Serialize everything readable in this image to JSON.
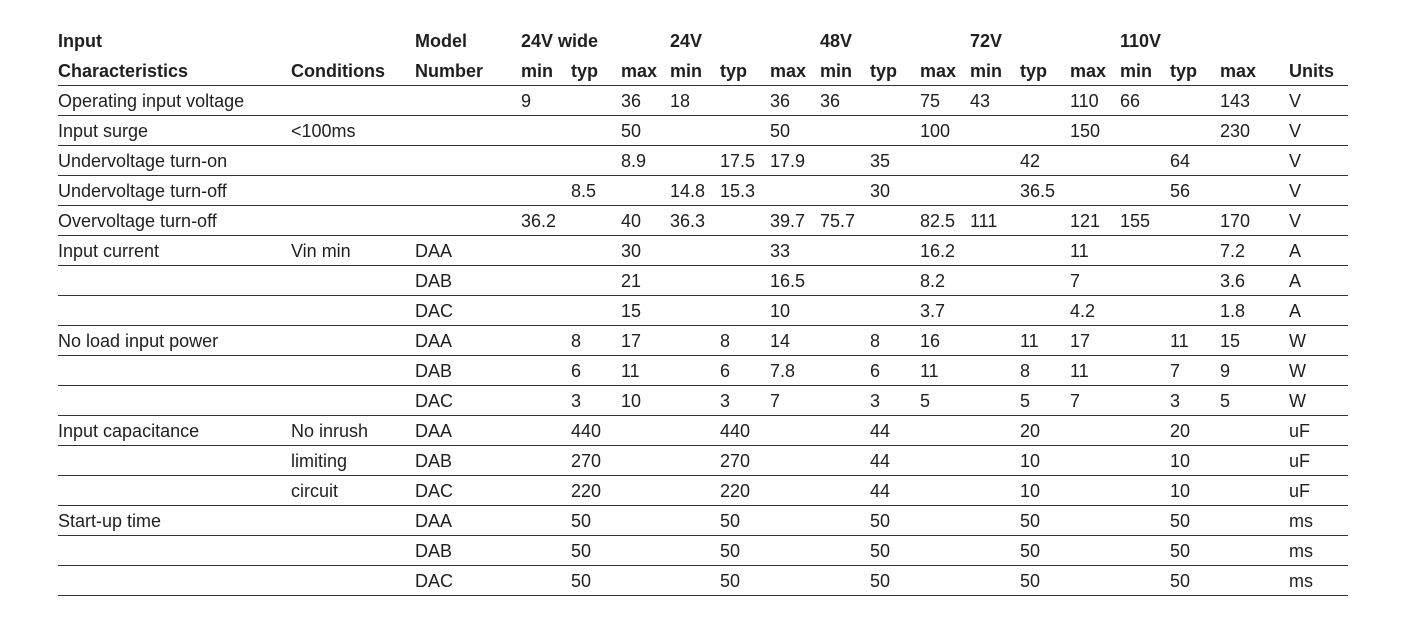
{
  "table": {
    "group_header": {
      "label": "Input",
      "model": "Model",
      "groups": [
        "24V wide",
        "24V",
        "48V",
        "72V",
        "110V"
      ]
    },
    "column_header": {
      "label": "Characteristics",
      "conditions": "Conditions",
      "model": "Number",
      "sub": [
        "min",
        "typ",
        "max",
        "min",
        "typ",
        "max",
        "min",
        "typ",
        "max",
        "min",
        "typ",
        "max",
        "min",
        "typ",
        "max"
      ],
      "units": "Units"
    },
    "rows": [
      {
        "label": "Operating input voltage",
        "cond": "",
        "model": "",
        "v": [
          "9",
          "",
          "36",
          "18",
          "",
          "36",
          "36",
          "",
          "75",
          "43",
          "",
          "110",
          "66",
          "",
          "143"
        ],
        "unit": "V"
      },
      {
        "label": "Input surge",
        "cond": "<100ms",
        "model": "",
        "v": [
          "",
          "",
          "50",
          "",
          "",
          "50",
          "",
          "",
          "100",
          "",
          "",
          "150",
          "",
          "",
          "230"
        ],
        "unit": "V"
      },
      {
        "label": "Undervoltage turn-on",
        "cond": "",
        "model": "",
        "v": [
          "",
          "",
          "8.9",
          "",
          "17.5",
          "17.9",
          "",
          "35",
          "",
          "",
          "42",
          "",
          "",
          "64",
          ""
        ],
        "unit": "V"
      },
      {
        "label": "Undervoltage turn-off",
        "cond": "",
        "model": "",
        "v": [
          "",
          "8.5",
          "",
          "14.8",
          "15.3",
          "",
          "",
          "30",
          "",
          "",
          "36.5",
          "",
          "",
          "56",
          ""
        ],
        "unit": "V"
      },
      {
        "label": "Overvoltage turn-off",
        "cond": "",
        "model": "",
        "v": [
          "36.2",
          "",
          "40",
          "36.3",
          "",
          "39.7",
          "75.7",
          "",
          "82.5",
          "111",
          "",
          "121",
          "155",
          "",
          "170"
        ],
        "unit": "V"
      },
      {
        "label": "Input current",
        "cond": "Vin min",
        "model": "DAA",
        "v": [
          "",
          "",
          "30",
          "",
          "",
          "33",
          "",
          "",
          "16.2",
          "",
          "",
          "11",
          "",
          "",
          "7.2"
        ],
        "unit": "A"
      },
      {
        "label": "",
        "cond": "",
        "model": "DAB",
        "v": [
          "",
          "",
          "21",
          "",
          "",
          "16.5",
          "",
          "",
          "8.2",
          "",
          "",
          "7",
          "",
          "",
          "3.6"
        ],
        "unit": "A"
      },
      {
        "label": "",
        "cond": "",
        "model": "DAC",
        "v": [
          "",
          "",
          "15",
          "",
          "",
          "10",
          "",
          "",
          "3.7",
          "",
          "",
          "4.2",
          "",
          "",
          "1.8"
        ],
        "unit": "A"
      },
      {
        "label": "No load input power",
        "cond": "",
        "model": "DAA",
        "v": [
          "",
          "8",
          "17",
          "",
          "8",
          "14",
          "",
          "8",
          "16",
          "",
          "11",
          "17",
          "",
          "11",
          "15"
        ],
        "unit": "W"
      },
      {
        "label": "",
        "cond": "",
        "model": "DAB",
        "v": [
          "",
          "6",
          "11",
          "",
          "6",
          "7.8",
          "",
          "6",
          "11",
          "",
          "8",
          "11",
          "",
          "7",
          "9"
        ],
        "unit": "W"
      },
      {
        "label": "",
        "cond": "",
        "model": "DAC",
        "v": [
          "",
          "3",
          "10",
          "",
          "3",
          "7",
          "",
          "3",
          "5",
          "",
          "5",
          "7",
          "",
          "3",
          "5"
        ],
        "unit": "W"
      },
      {
        "label": "Input capacitance",
        "cond": "No inrush",
        "model": "DAA",
        "v": [
          "",
          "440",
          "",
          "",
          "440",
          "",
          "",
          "44",
          "",
          "",
          "20",
          "",
          "",
          "20",
          ""
        ],
        "unit": "uF"
      },
      {
        "label": "",
        "cond": "limiting",
        "model": "DAB",
        "v": [
          "",
          "270",
          "",
          "",
          "270",
          "",
          "",
          "44",
          "",
          "",
          "10",
          "",
          "",
          "10",
          ""
        ],
        "unit": "uF"
      },
      {
        "label": "",
        "cond": "circuit",
        "model": "DAC",
        "v": [
          "",
          "220",
          "",
          "",
          "220",
          "",
          "",
          "44",
          "",
          "",
          "10",
          "",
          "",
          "10",
          ""
        ],
        "unit": "uF"
      },
      {
        "label": "Start-up time",
        "cond": "",
        "model": "DAA",
        "v": [
          "",
          "50",
          "",
          "",
          "50",
          "",
          "",
          "50",
          "",
          "",
          "50",
          "",
          "",
          "50",
          ""
        ],
        "unit": "ms"
      },
      {
        "label": "",
        "cond": "",
        "model": "DAB",
        "v": [
          "",
          "50",
          "",
          "",
          "50",
          "",
          "",
          "50",
          "",
          "",
          "50",
          "",
          "",
          "50",
          ""
        ],
        "unit": "ms"
      },
      {
        "label": "",
        "cond": "",
        "model": "DAC",
        "v": [
          "",
          "50",
          "",
          "",
          "50",
          "",
          "",
          "50",
          "",
          "",
          "50",
          "",
          "",
          "50",
          ""
        ],
        "unit": "ms"
      }
    ]
  }
}
